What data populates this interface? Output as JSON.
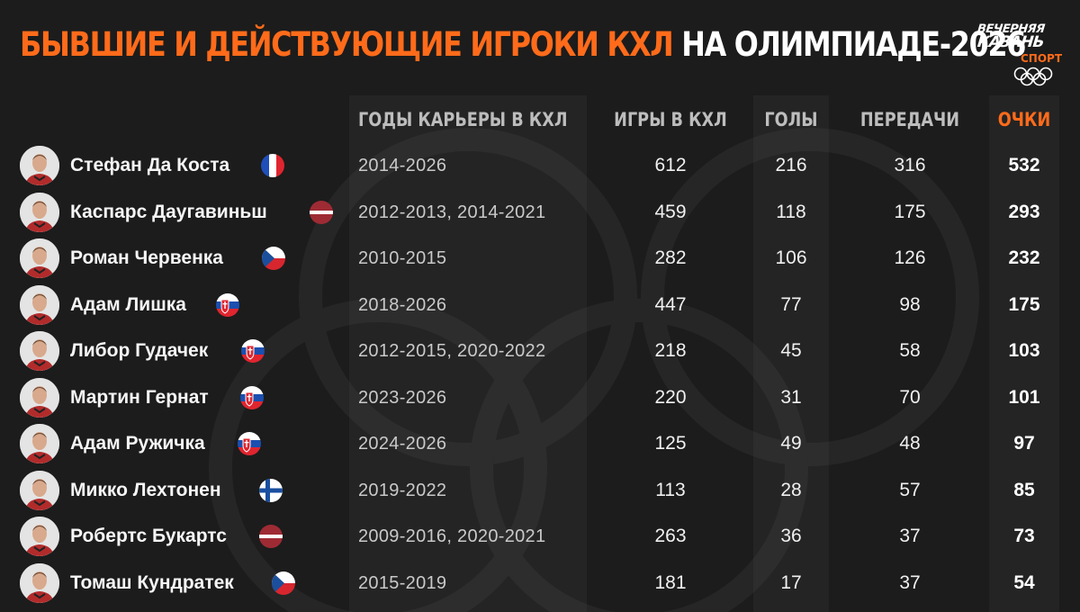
{
  "title": {
    "part1": "БЫВШИЕ И ДЕЙСТВУЮЩИЕ ИГРОКИ КХЛ",
    "part2": "НА ОЛИМПИАДЕ-2026"
  },
  "logo": {
    "line1": "ВЕЧЕРНЯЯ",
    "line2": "КАЗАНЬ",
    "sport": "СПОРТ"
  },
  "colors": {
    "accent": "#ff6b1a",
    "background": "#1c1c1c",
    "text": "#ffffff"
  },
  "table": {
    "headers": {
      "career": "ГОДЫ КАРЬЕРЫ В КХЛ",
      "games": "ИГРЫ В КХЛ",
      "goals": "ГОЛЫ",
      "assists": "ПЕРЕДАЧИ",
      "points": "ОЧКИ"
    },
    "rows": [
      {
        "name": "Стефан Да Коста",
        "flag": "france-flag-icon",
        "career": "2014-2026",
        "games": "612",
        "goals": "216",
        "assists": "316",
        "points": "532"
      },
      {
        "name": "Каспарс Даугавиньш",
        "flag": "latvia-flag-icon",
        "career": "2012-2013, 2014-2021",
        "games": "459",
        "goals": "118",
        "assists": "175",
        "points": "293"
      },
      {
        "name": "Роман Червенка",
        "flag": "czechia-flag-icon",
        "career": "2010-2015",
        "games": "282",
        "goals": "106",
        "assists": "126",
        "points": "232"
      },
      {
        "name": "Адам Лишка",
        "flag": "slovakia-flag-icon",
        "career": "2018-2026",
        "games": "447",
        "goals": "77",
        "assists": "98",
        "points": "175"
      },
      {
        "name": "Либор Гудачек",
        "flag": "slovakia-flag-icon",
        "career": "2012-2015, 2020-2022",
        "games": "218",
        "goals": "45",
        "assists": "58",
        "points": "103"
      },
      {
        "name": "Мартин Гернат",
        "flag": "slovakia-flag-icon",
        "career": "2023-2026",
        "games": "220",
        "goals": "31",
        "assists": "70",
        "points": "101"
      },
      {
        "name": "Адам Ружичка",
        "flag": "slovakia-flag-icon",
        "career": "2024-2026",
        "games": "125",
        "goals": "49",
        "assists": "48",
        "points": "97"
      },
      {
        "name": "Микко Лехтонен",
        "flag": "finland-flag-icon",
        "career": "2019-2022",
        "games": "113",
        "goals": "28",
        "assists": "57",
        "points": "85"
      },
      {
        "name": "Робертс Букартс",
        "flag": "latvia-flag-icon",
        "career": "2009-2016, 2020-2021",
        "games": "263",
        "goals": "36",
        "assists": "37",
        "points": "73"
      },
      {
        "name": "Томаш Кундратек",
        "flag": "czechia-flag-icon",
        "career": "2015-2019",
        "games": "181",
        "goals": "17",
        "assists": "37",
        "points": "54"
      }
    ]
  }
}
